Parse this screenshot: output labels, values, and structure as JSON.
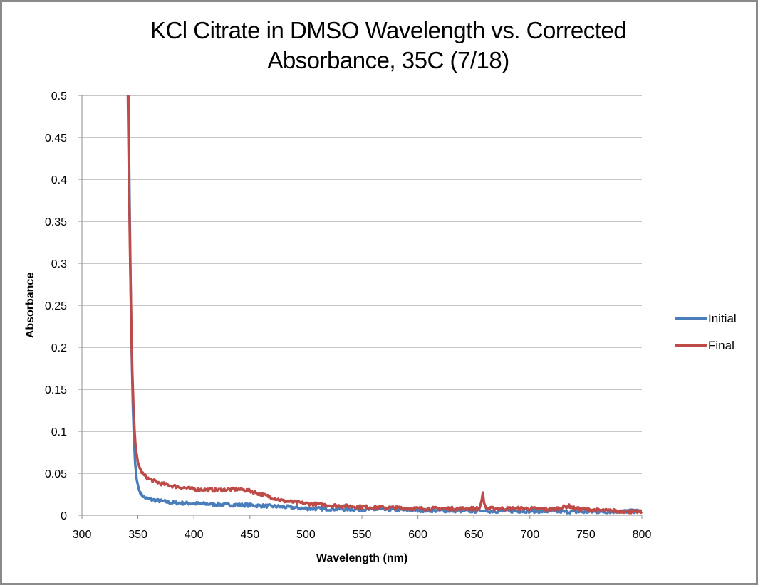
{
  "chart_data": {
    "type": "line",
    "title": "KCl Citrate in DMSO Wavelength vs. Corrected Absorbance, 35C (7/18)",
    "title_lines": [
      "KCl Citrate in DMSO Wavelength vs. Corrected",
      "Absorbance, 35C (7/18)"
    ],
    "xlabel": "Wavelength (nm)",
    "ylabel": "Absorbance",
    "xlim": [
      300,
      800
    ],
    "ylim": [
      0,
      0.5
    ],
    "xticks": [
      300,
      350,
      400,
      450,
      500,
      550,
      600,
      650,
      700,
      750,
      800
    ],
    "xtick_labels": [
      "300",
      "350",
      "400",
      "450",
      "500",
      "550",
      "600",
      "650",
      "700",
      "750",
      "800"
    ],
    "yticks": [
      0,
      0.05,
      0.1,
      0.15,
      0.2,
      0.25,
      0.3,
      0.35,
      0.4,
      0.45,
      0.5
    ],
    "ytick_labels": [
      "0",
      "0.05",
      "0.1",
      "0.15",
      "0.2",
      "0.25",
      "0.3",
      "0.35",
      "0.4",
      "0.45",
      "0.5"
    ],
    "grid": "horizontal",
    "legend_position": "right",
    "series": [
      {
        "name": "Initial",
        "color": "#4a7ebb",
        "x": [
          341.5,
          342.5,
          343.5,
          344.5,
          345.5,
          346.5,
          347.5,
          349,
          351,
          353,
          356,
          360,
          370,
          380,
          400,
          420,
          450,
          480,
          500,
          550,
          600,
          650,
          700,
          750,
          800
        ],
        "y": [
          0.5,
          0.38,
          0.27,
          0.19,
          0.13,
          0.09,
          0.062,
          0.042,
          0.03,
          0.025,
          0.021,
          0.019,
          0.017,
          0.015,
          0.014,
          0.013,
          0.012,
          0.01,
          0.008,
          0.007,
          0.006,
          0.005,
          0.005,
          0.004,
          0.005
        ]
      },
      {
        "name": "Final",
        "color": "#be4b48",
        "x": [
          341,
          342,
          343,
          344,
          345,
          346,
          347,
          348,
          350,
          352,
          355,
          360,
          370,
          380,
          400,
          420,
          440,
          450,
          465,
          480,
          500,
          520,
          550,
          600,
          640,
          655,
          657,
          658,
          659,
          661,
          680,
          700,
          720,
          735,
          740,
          760,
          780,
          800
        ],
        "y": [
          0.5,
          0.4,
          0.31,
          0.23,
          0.17,
          0.13,
          0.1,
          0.08,
          0.063,
          0.055,
          0.048,
          0.043,
          0.038,
          0.035,
          0.031,
          0.03,
          0.031,
          0.029,
          0.023,
          0.017,
          0.014,
          0.012,
          0.01,
          0.008,
          0.008,
          0.008,
          0.018,
          0.027,
          0.015,
          0.008,
          0.008,
          0.008,
          0.007,
          0.011,
          0.008,
          0.006,
          0.005,
          0.004
        ]
      }
    ]
  }
}
